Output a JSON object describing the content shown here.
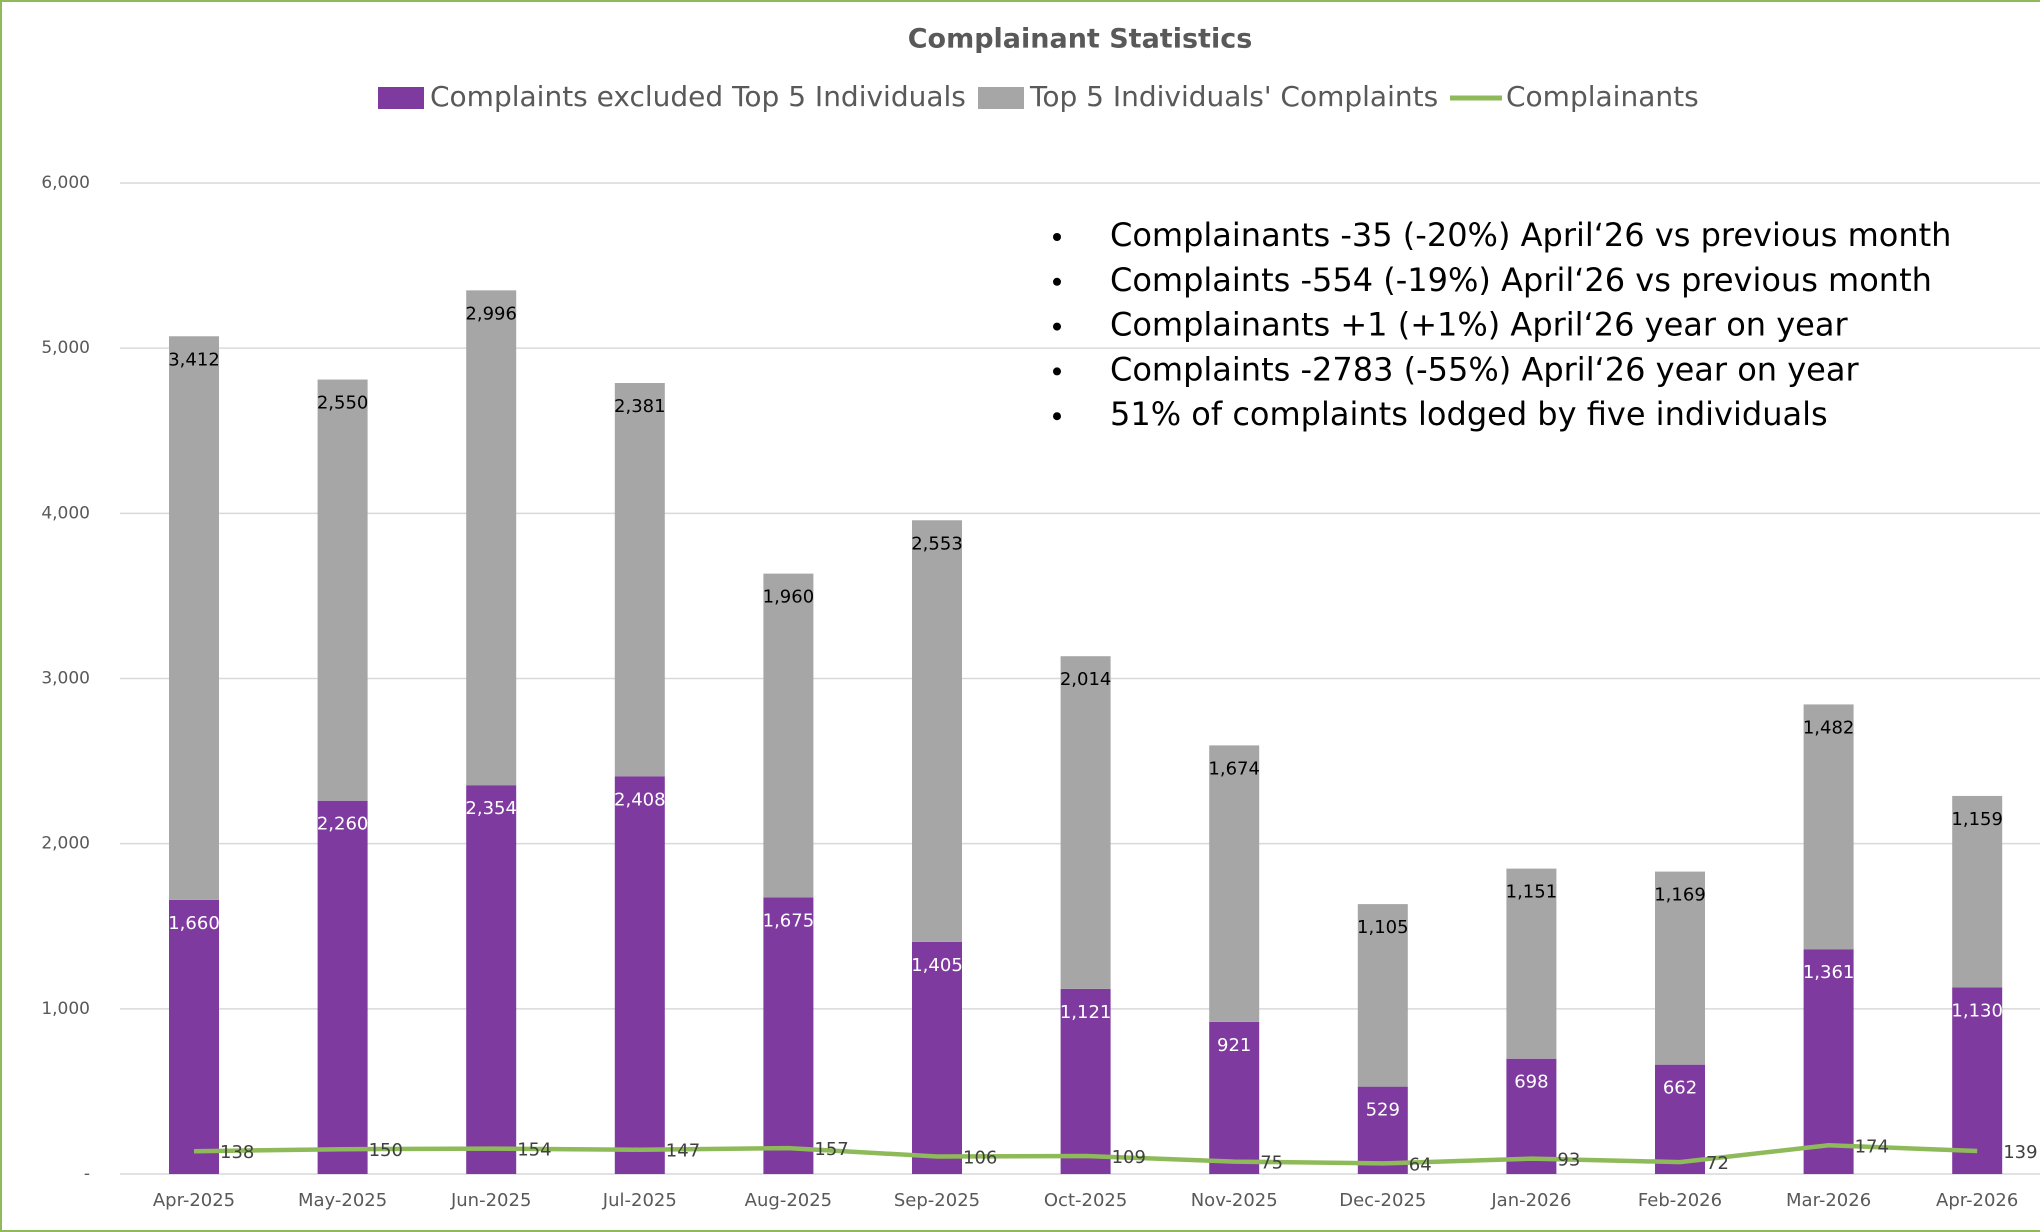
{
  "chart_data": {
    "type": "bar",
    "title": "Complainant Statistics",
    "categories": [
      "Apr-2025",
      "May-2025",
      "Jun-2025",
      "Jul-2025",
      "Aug-2025",
      "Sep-2025",
      "Oct-2025",
      "Nov-2025",
      "Dec-2025",
      "Jan-2026",
      "Feb-2026",
      "Mar-2026",
      "Apr-2026"
    ],
    "series": [
      {
        "name": "Complaints excluded Top 5 Individuals",
        "type": "bar",
        "color": "#7e3a9e",
        "values": [
          1660,
          2260,
          2354,
          2408,
          1675,
          1405,
          1121,
          921,
          529,
          698,
          662,
          1361,
          1130
        ],
        "value_labels": [
          "1,660",
          "2,260",
          "2,354",
          "2,408",
          "1,675",
          "1,405",
          "1,121",
          "921",
          "529",
          "698",
          "662",
          "1,361",
          "1,130"
        ]
      },
      {
        "name": "Top 5 Individuals' Complaints",
        "type": "bar",
        "color": "#a6a6a6",
        "values": [
          3412,
          2550,
          2996,
          2381,
          1960,
          2553,
          2014,
          1674,
          1105,
          1151,
          1169,
          1482,
          1159
        ],
        "value_labels": [
          "3,412",
          "2,550",
          "2,996",
          "2,381",
          "1,960",
          "2,553",
          "2,014",
          "1,674",
          "1,105",
          "1,151",
          "1,169",
          "1,482",
          "1,159"
        ]
      },
      {
        "name": "Complainants",
        "type": "line",
        "color": "#8fba5a",
        "values": [
          138,
          150,
          154,
          147,
          157,
          106,
          109,
          75,
          64,
          93,
          72,
          174,
          139
        ]
      }
    ],
    "stacked": true,
    "ylim": [
      0,
      6000
    ],
    "yticks": [
      {
        "value": 0,
        "label": "-"
      },
      {
        "value": 1000,
        "label": "1,000"
      },
      {
        "value": 2000,
        "label": "2,000"
      },
      {
        "value": 3000,
        "label": "3,000"
      },
      {
        "value": 4000,
        "label": "4,000"
      },
      {
        "value": 5000,
        "label": "5,000"
      },
      {
        "value": 6000,
        "label": "6,000"
      }
    ],
    "grid": true,
    "legend": "top",
    "annotations": [
      "Complainants -35 (-20%) April‘26 vs previous month",
      "Complaints -554 (-19%) April‘26 vs previous month",
      "Complainants +1 (+1%)  April‘26 year on year",
      "Complaints -2783 (-55%) April‘26 year on year",
      "51% of complaints lodged by five individuals"
    ]
  }
}
